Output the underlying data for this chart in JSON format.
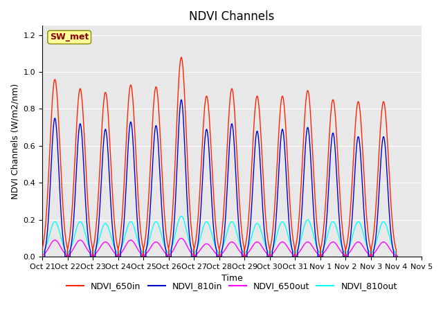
{
  "title": "NDVI Channels",
  "xlabel": "Time",
  "ylabel": "NDVI Channels (W/m2/nm)",
  "ylim": [
    0,
    1.25
  ],
  "yticks": [
    0.0,
    0.2,
    0.4,
    0.6,
    0.8,
    1.0,
    1.2
  ],
  "xtick_labels": [
    "Oct 21",
    "Oct 22",
    "Oct 23",
    "Oct 24",
    "Oct 25",
    "Oct 26",
    "Oct 27",
    "Oct 28",
    "Oct 29",
    "Oct 30",
    "Oct 31",
    "Nov 1",
    "Nov 2",
    "Nov 3",
    "Nov 4",
    "Nov 5"
  ],
  "line_colors": {
    "NDVI_650in": "#FF2200",
    "NDVI_810in": "#0000CC",
    "NDVI_650out": "#FF00FF",
    "NDVI_810out": "#00FFFF"
  },
  "peak_values_650in": [
    0.96,
    0.91,
    0.89,
    0.93,
    0.92,
    1.08,
    0.87,
    0.91,
    0.87,
    0.87,
    0.9,
    0.85,
    0.84,
    0.84
  ],
  "peak_values_810in": [
    0.75,
    0.72,
    0.69,
    0.73,
    0.71,
    0.85,
    0.69,
    0.72,
    0.68,
    0.69,
    0.7,
    0.67,
    0.65,
    0.65
  ],
  "peak_values_650out": [
    0.09,
    0.09,
    0.08,
    0.09,
    0.08,
    0.1,
    0.07,
    0.08,
    0.08,
    0.08,
    0.08,
    0.08,
    0.08,
    0.08
  ],
  "peak_values_810out": [
    0.19,
    0.19,
    0.18,
    0.19,
    0.19,
    0.22,
    0.19,
    0.19,
    0.18,
    0.19,
    0.2,
    0.19,
    0.19,
    0.19
  ],
  "background_color": "#E8E8E8",
  "grid_color": "#FFFFFF",
  "annotation_text": "SW_met",
  "annotation_bg": "#FFFF99",
  "annotation_fg": "#8B0000",
  "title_fontsize": 12,
  "axis_label_fontsize": 9,
  "tick_fontsize": 8,
  "legend_fontsize": 9,
  "num_days": 14
}
